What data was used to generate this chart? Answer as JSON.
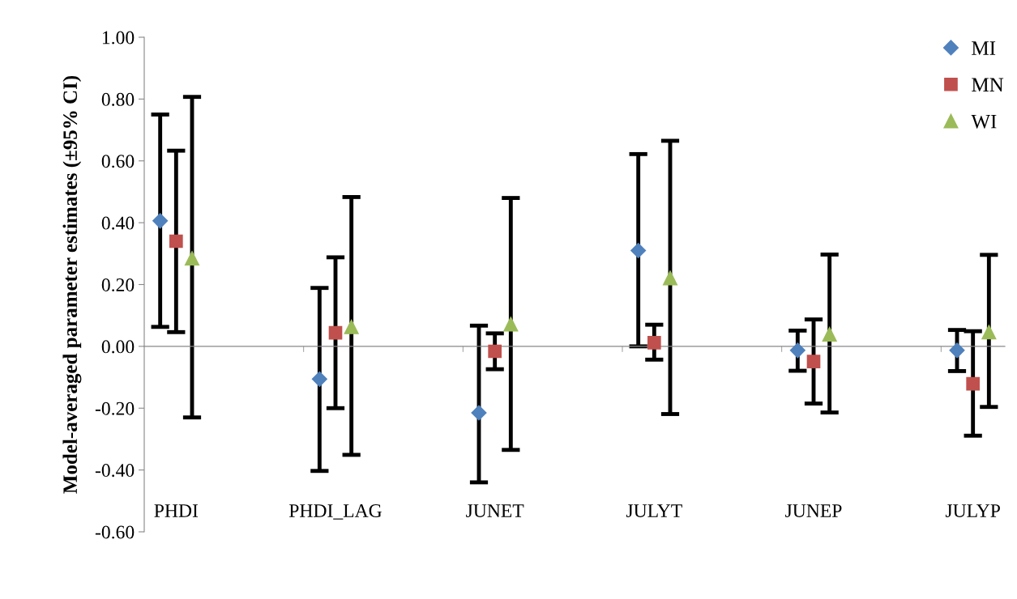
{
  "chart_data": {
    "type": "scatter",
    "ylabel": "Model-averaged parameter estimates (±95% CI)",
    "categories": [
      "PHDI",
      "PHDI_LAG",
      "JUNET",
      "JULYT",
      "JUNEP",
      "JULYP"
    ],
    "ylim": [
      -0.6,
      1.0
    ],
    "yticks": [
      {
        "value": -0.6,
        "label": "-0.60"
      },
      {
        "value": -0.4,
        "label": "-0.40"
      },
      {
        "value": -0.2,
        "label": "-0.20"
      },
      {
        "value": 0,
        "label": "0.00"
      },
      {
        "value": 0.2,
        "label": "0.20"
      },
      {
        "value": 0.4,
        "label": "0.40"
      },
      {
        "value": 0.6,
        "label": "0.60"
      },
      {
        "value": 0.8,
        "label": "0.80"
      },
      {
        "value": 1.0,
        "label": "1.00"
      }
    ],
    "legend": "top right",
    "series": [
      {
        "name": "MI",
        "color": "#4f81bd",
        "marker": "diamond",
        "values": [
          0.406,
          -0.106,
          -0.215,
          0.31,
          -0.013,
          -0.013
        ],
        "errors": [
          [
            0.063,
            0.75
          ],
          [
            -0.403,
            0.189
          ],
          [
            -0.44,
            0.067
          ],
          [
            0.0,
            0.622
          ],
          [
            -0.079,
            0.051
          ],
          [
            -0.08,
            0.053
          ]
        ]
      },
      {
        "name": "MN",
        "color": "#c0504d",
        "marker": "square",
        "values": [
          0.34,
          0.044,
          -0.016,
          0.012,
          -0.049,
          -0.121
        ],
        "errors": [
          [
            0.046,
            0.633
          ],
          [
            -0.2,
            0.288
          ],
          [
            -0.074,
            0.042
          ],
          [
            -0.043,
            0.07
          ],
          [
            -0.185,
            0.087
          ],
          [
            -0.289,
            0.049
          ]
        ]
      },
      {
        "name": "WI",
        "color": "#9bbb59",
        "marker": "triangle",
        "values": [
          0.285,
          0.063,
          0.072,
          0.221,
          0.039,
          0.046
        ],
        "errors": [
          [
            -0.23,
            0.807
          ],
          [
            -0.351,
            0.483
          ],
          [
            -0.335,
            0.48
          ],
          [
            -0.219,
            0.665
          ],
          [
            -0.214,
            0.297
          ],
          [
            -0.196,
            0.296
          ]
        ]
      }
    ]
  }
}
